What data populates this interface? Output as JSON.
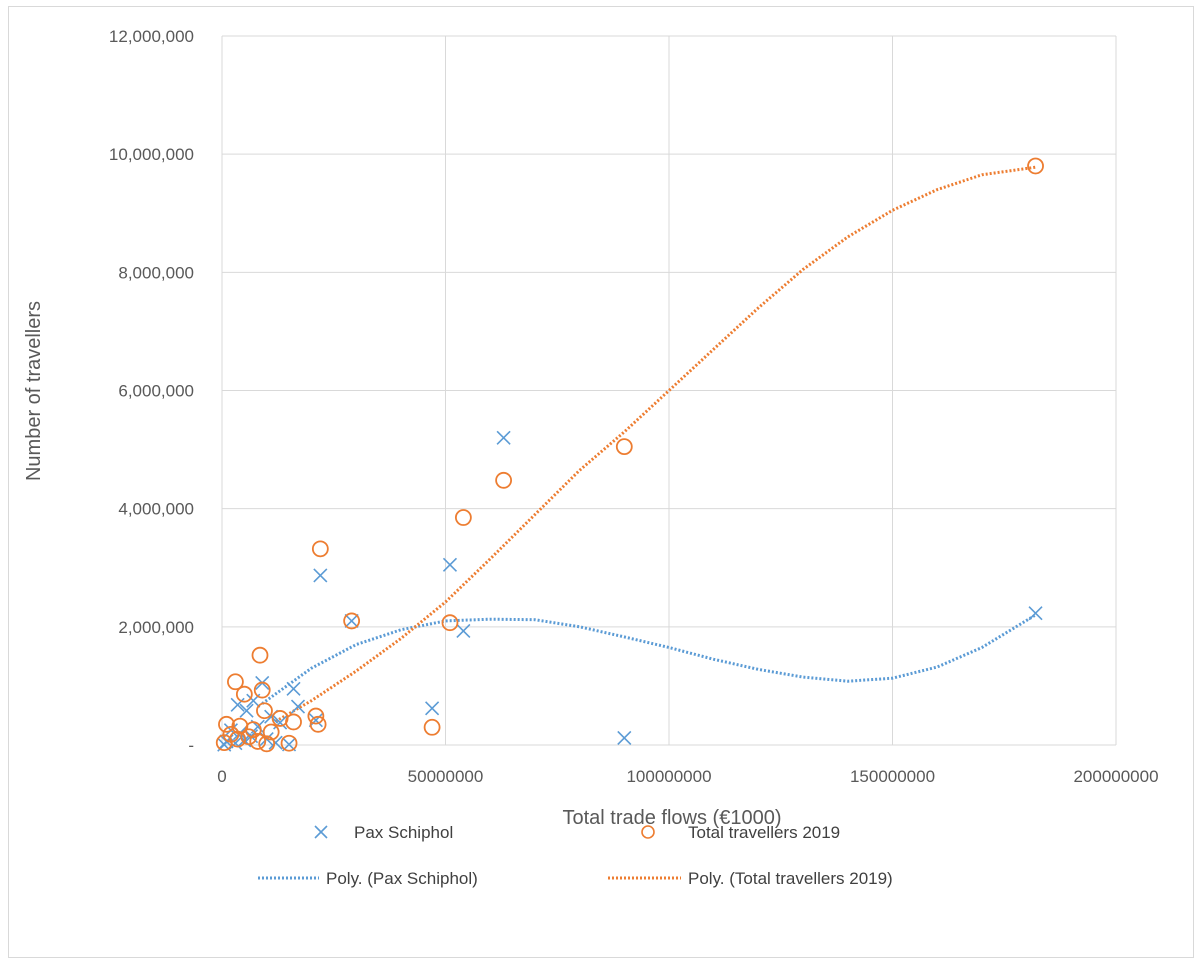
{
  "chart_data": {
    "type": "scatter",
    "title": "",
    "xlabel": "Total trade flows (€1000)",
    "ylabel": "Number of travellers",
    "xlim": [
      0,
      200000000
    ],
    "ylim": [
      0,
      12000000
    ],
    "x_ticks": [
      0,
      50000000,
      100000000,
      150000000,
      200000000
    ],
    "x_tick_labels": [
      "0",
      "50000000",
      "100000000",
      "150000000",
      "200000000"
    ],
    "y_ticks": [
      0,
      2000000,
      4000000,
      6000000,
      8000000,
      10000000,
      12000000
    ],
    "y_tick_labels": [
      "-",
      "2,000,000",
      "4,000,000",
      "6,000,000",
      "8,000,000",
      "10,000,000",
      "12,000,000"
    ],
    "grid": "on",
    "legend_position": "bottom",
    "series": [
      {
        "name": "Pax Schiphol",
        "marker": "x",
        "color": "#5b9bd5",
        "points": [
          [
            63000000,
            5200000
          ],
          [
            51000000,
            3050000
          ],
          [
            22000000,
            2870000
          ],
          [
            29000000,
            2100000
          ],
          [
            54000000,
            1930000
          ],
          [
            182000000,
            2230000
          ],
          [
            47000000,
            620000
          ],
          [
            90000000,
            120000
          ],
          [
            16000000,
            950000
          ],
          [
            9000000,
            1050000
          ],
          [
            7000000,
            750000
          ],
          [
            17000000,
            650000
          ],
          [
            3500000,
            680000
          ],
          [
            5500000,
            580000
          ],
          [
            11000000,
            480000
          ],
          [
            21000000,
            420000
          ],
          [
            13000000,
            380000
          ],
          [
            8000000,
            310000
          ],
          [
            2000000,
            250000
          ],
          [
            4000000,
            200000
          ],
          [
            6500000,
            150000
          ],
          [
            10000000,
            100000
          ],
          [
            1000000,
            60000
          ],
          [
            3000000,
            30000
          ],
          [
            12000000,
            40000
          ],
          [
            15000000,
            10000
          ],
          [
            500000,
            5000
          ],
          [
            5000000,
            80000
          ]
        ]
      },
      {
        "name": "Total travellers 2019",
        "marker": "o",
        "color": "#ed7d31",
        "points": [
          [
            182000000,
            9800000
          ],
          [
            90000000,
            5050000
          ],
          [
            63000000,
            4480000
          ],
          [
            54000000,
            3850000
          ],
          [
            22000000,
            3320000
          ],
          [
            29000000,
            2100000
          ],
          [
            51000000,
            2070000
          ],
          [
            8500000,
            1520000
          ],
          [
            3000000,
            1070000
          ],
          [
            9000000,
            930000
          ],
          [
            5000000,
            860000
          ],
          [
            9500000,
            580000
          ],
          [
            21000000,
            490000
          ],
          [
            13000000,
            450000
          ],
          [
            16000000,
            390000
          ],
          [
            21500000,
            350000
          ],
          [
            47000000,
            300000
          ],
          [
            1000000,
            350000
          ],
          [
            4000000,
            320000
          ],
          [
            7000000,
            260000
          ],
          [
            11000000,
            220000
          ],
          [
            2000000,
            180000
          ],
          [
            6000000,
            140000
          ],
          [
            3500000,
            100000
          ],
          [
            8000000,
            60000
          ],
          [
            500000,
            40000
          ],
          [
            15000000,
            30000
          ],
          [
            10000000,
            20000
          ]
        ]
      }
    ],
    "trendlines": [
      {
        "name": "Poly. (Pax Schiphol)",
        "color": "#5b9bd5",
        "x": [
          9000000,
          20000000,
          30000000,
          40000000,
          50000000,
          60000000,
          70000000,
          80000000,
          90000000,
          100000000,
          110000000,
          120000000,
          130000000,
          140000000,
          150000000,
          160000000,
          170000000,
          182000000
        ],
        "y": [
          700000,
          1300000,
          1700000,
          1950000,
          2100000,
          2130000,
          2120000,
          2000000,
          1830000,
          1650000,
          1450000,
          1280000,
          1150000,
          1080000,
          1130000,
          1320000,
          1650000,
          2200000
        ]
      },
      {
        "name": "Poly. (Total travellers 2019)",
        "color": "#ed7d31",
        "x": [
          12000000,
          20000000,
          30000000,
          40000000,
          50000000,
          60000000,
          70000000,
          80000000,
          90000000,
          100000000,
          110000000,
          120000000,
          130000000,
          140000000,
          150000000,
          160000000,
          170000000,
          182000000
        ],
        "y": [
          400000,
          750000,
          1250000,
          1800000,
          2420000,
          3150000,
          3900000,
          4650000,
          5300000,
          6000000,
          6700000,
          7400000,
          8050000,
          8600000,
          9050000,
          9400000,
          9650000,
          9780000
        ]
      }
    ]
  }
}
